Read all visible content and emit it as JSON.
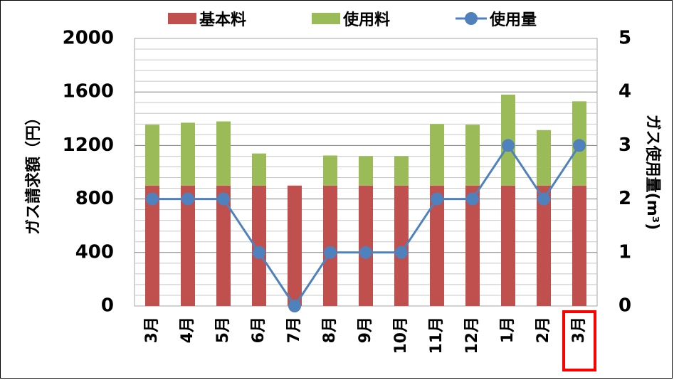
{
  "chart_data": {
    "type": "bar",
    "categories": [
      "3月",
      "4月",
      "5月",
      "6月",
      "7月",
      "8月",
      "9月",
      "10月",
      "11月",
      "12月",
      "1月",
      "2月",
      "3月"
    ],
    "series": [
      {
        "name": "基本料",
        "kind": "bar",
        "stack": "charge",
        "axis": "left",
        "color": "#c0504d",
        "values": [
          900,
          900,
          900,
          900,
          900,
          900,
          900,
          900,
          900,
          900,
          900,
          900,
          900
        ]
      },
      {
        "name": "使用料",
        "kind": "bar",
        "stack": "charge",
        "axis": "left",
        "color": "#9bbb59",
        "values": [
          455,
          470,
          480,
          240,
          0,
          225,
          220,
          220,
          460,
          455,
          680,
          415,
          630
        ]
      },
      {
        "name": "使用量",
        "kind": "line",
        "axis": "right",
        "color": "#4f81bd",
        "values": [
          2,
          2,
          2,
          1,
          0,
          1,
          1,
          1,
          2,
          2,
          3,
          2,
          3
        ]
      }
    ],
    "ylabel": "ガス請求額（円）",
    "y2label": "ガス使用量(m³)",
    "ylim": [
      0,
      2000
    ],
    "y2lim": [
      0,
      5
    ],
    "yticks": [
      "0",
      "400",
      "800",
      "1200",
      "1600",
      "2000"
    ],
    "y2ticks": [
      "0",
      "1",
      "2",
      "3",
      "4",
      "5"
    ],
    "grid": true,
    "legend_position": "top",
    "highlighted_category_index": 12,
    "highlight_color": "#ff0000"
  }
}
